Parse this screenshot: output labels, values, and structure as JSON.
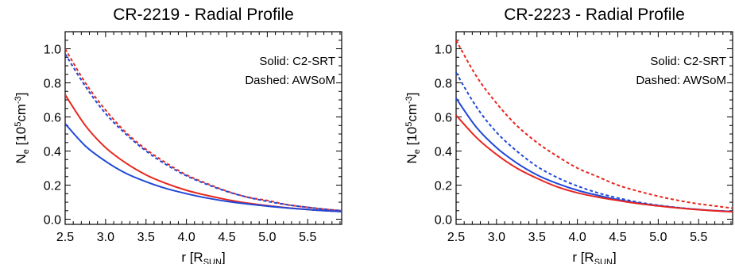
{
  "chart_data": [
    {
      "type": "line",
      "title": "CR-2219 - Radial Profile",
      "xlabel": {
        "main": "r [R",
        "sub": "SUN",
        "end": "]"
      },
      "ylabel": {
        "main": "N",
        "sub": "e",
        "mid": " [10",
        "sup": "5",
        "unit": "cm",
        "sup2": "-3",
        "end": "]"
      },
      "xlim": [
        2.5,
        5.92
      ],
      "ylim": [
        -0.03,
        1.1
      ],
      "xticks": [
        "2.5",
        "3.0",
        "3.5",
        "4.0",
        "4.5",
        "5.0",
        "5.5"
      ],
      "yticks": [
        "0.0",
        "0.2",
        "0.4",
        "0.6",
        "0.8",
        "1.0"
      ],
      "legend": [
        "Solid: C2-SRT",
        "Dashed: AWSoM"
      ],
      "legend_position": "top-right",
      "x": [
        2.5,
        2.75,
        3.0,
        3.25,
        3.5,
        3.75,
        4.0,
        4.25,
        4.5,
        4.75,
        5.0,
        5.25,
        5.5,
        5.75,
        5.92
      ],
      "series": [
        {
          "color": "#e8261e",
          "style": "dashed",
          "values": [
            1.0,
            0.8,
            0.64,
            0.51,
            0.41,
            0.33,
            0.26,
            0.21,
            0.165,
            0.13,
            0.11,
            0.085,
            0.07,
            0.057,
            0.05
          ]
        },
        {
          "color": "#2048d8",
          "style": "dashed",
          "values": [
            0.97,
            0.78,
            0.62,
            0.5,
            0.4,
            0.32,
            0.255,
            0.205,
            0.163,
            0.13,
            0.105,
            0.085,
            0.07,
            0.057,
            0.05
          ]
        },
        {
          "color": "#e8261e",
          "style": "solid",
          "values": [
            0.73,
            0.55,
            0.42,
            0.33,
            0.26,
            0.21,
            0.17,
            0.14,
            0.115,
            0.095,
            0.08,
            0.067,
            0.057,
            0.049,
            0.045
          ]
        },
        {
          "color": "#2048d8",
          "style": "solid",
          "values": [
            0.56,
            0.43,
            0.34,
            0.27,
            0.22,
            0.18,
            0.15,
            0.125,
            0.105,
            0.09,
            0.077,
            0.066,
            0.057,
            0.049,
            0.045
          ]
        }
      ]
    },
    {
      "type": "line",
      "title": "CR-2223 - Radial Profile",
      "xlabel": {
        "main": "r [R",
        "sub": "SUN",
        "end": "]"
      },
      "ylabel": {
        "main": "N",
        "sub": "e",
        "mid": " [10",
        "sup": "5",
        "unit": "cm",
        "sup2": "-3",
        "end": "]"
      },
      "xlim": [
        2.5,
        5.92
      ],
      "ylim": [
        -0.03,
        1.1
      ],
      "xticks": [
        "2.5",
        "3.0",
        "3.5",
        "4.0",
        "4.5",
        "5.0",
        "5.5"
      ],
      "yticks": [
        "0.0",
        "0.2",
        "0.4",
        "0.6",
        "0.8",
        "1.0"
      ],
      "legend": [
        "Solid: C2-SRT",
        "Dashed: AWSoM"
      ],
      "legend_position": "top-right",
      "x": [
        2.5,
        2.75,
        3.0,
        3.25,
        3.5,
        3.75,
        4.0,
        4.25,
        4.5,
        4.75,
        5.0,
        5.25,
        5.5,
        5.75,
        5.92
      ],
      "series": [
        {
          "color": "#e8261e",
          "style": "dashed",
          "values": [
            1.05,
            0.84,
            0.68,
            0.55,
            0.45,
            0.37,
            0.3,
            0.25,
            0.2,
            0.165,
            0.135,
            0.11,
            0.09,
            0.075,
            0.065
          ]
        },
        {
          "color": "#2048d8",
          "style": "dashed",
          "values": [
            0.86,
            0.66,
            0.51,
            0.4,
            0.31,
            0.245,
            0.195,
            0.155,
            0.125,
            0.1,
            0.082,
            0.068,
            0.057,
            0.049,
            0.045
          ]
        },
        {
          "color": "#2048d8",
          "style": "solid",
          "values": [
            0.71,
            0.54,
            0.42,
            0.33,
            0.26,
            0.21,
            0.17,
            0.14,
            0.115,
            0.095,
            0.08,
            0.067,
            0.057,
            0.049,
            0.045
          ]
        },
        {
          "color": "#e8261e",
          "style": "solid",
          "values": [
            0.61,
            0.48,
            0.38,
            0.3,
            0.24,
            0.19,
            0.155,
            0.13,
            0.11,
            0.092,
            0.078,
            0.066,
            0.056,
            0.048,
            0.044
          ]
        }
      ]
    }
  ]
}
